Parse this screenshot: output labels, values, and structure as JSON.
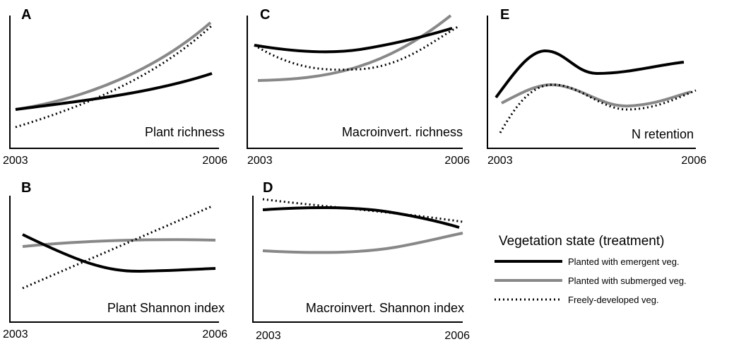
{
  "panels": [
    {
      "letter": "A",
      "label": "Plant richness",
      "x_start": "2003",
      "x_end": "2006"
    },
    {
      "letter": "B",
      "label": "Plant Shannon index",
      "x_start": "2003",
      "x_end": "2006"
    },
    {
      "letter": "C",
      "label": "Macroinvert. richness",
      "x_start": "2003",
      "x_end": "2006"
    },
    {
      "letter": "D",
      "label": "Macroinvert. Shannon index",
      "x_start": "2003",
      "x_end": "2006"
    },
    {
      "letter": "E",
      "label": "N retention",
      "x_start": "2003",
      "x_end": "2006"
    }
  ],
  "legend": {
    "title": "Vegetation state (treatment)",
    "items": [
      "Planted with emergent veg.",
      "Planted with submerged veg.",
      "Freely-developed veg."
    ]
  }
}
